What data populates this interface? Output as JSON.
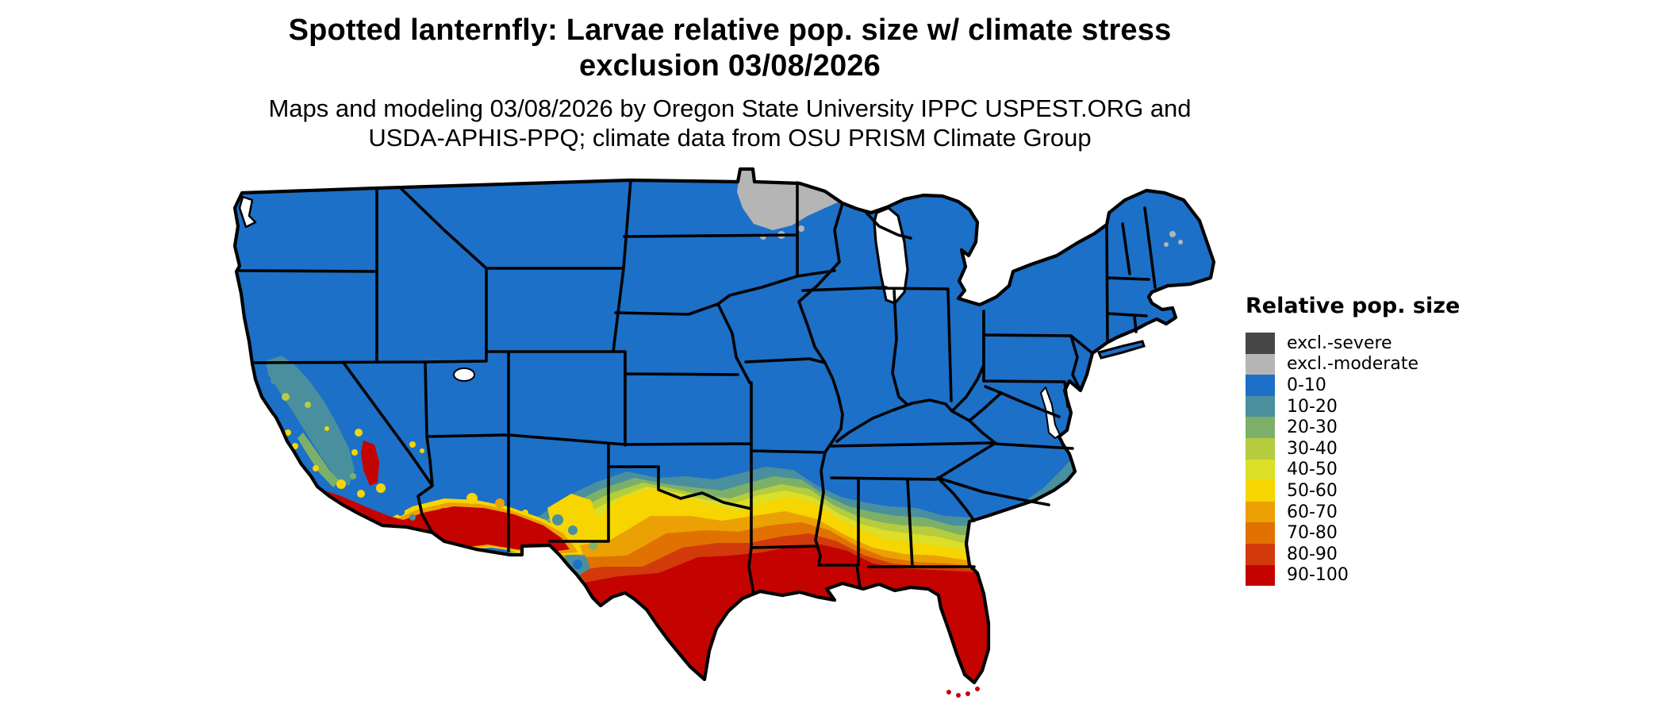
{
  "title": {
    "line1": "Spotted lanternfly: Larvae relative pop. size w/ climate stress",
    "line2": "exclusion 03/08/2026"
  },
  "subtitle": {
    "line1": "Maps and modeling 03/08/2026 by Oregon State University IPPC USPEST.ORG and",
    "line2": "USDA-APHIS-PPQ; climate data from OSU PRISM Climate Group"
  },
  "legend": {
    "title": "Relative pop. size",
    "entries": [
      {
        "label": "excl.-severe",
        "color": "#474747"
      },
      {
        "label": "excl.-moderate",
        "color": "#b5b5b5"
      },
      {
        "label": "0-10",
        "color": "#1c70c8"
      },
      {
        "label": "10-20",
        "color": "#4a8f9e"
      },
      {
        "label": "20-30",
        "color": "#7cb068"
      },
      {
        "label": "30-40",
        "color": "#b5cc3f"
      },
      {
        "label": "40-50",
        "color": "#dcdf26"
      },
      {
        "label": "50-60",
        "color": "#f7d500"
      },
      {
        "label": "60-70",
        "color": "#eba004"
      },
      {
        "label": "70-80",
        "color": "#e17100"
      },
      {
        "label": "80-90",
        "color": "#d23a0c"
      },
      {
        "label": "90-100",
        "color": "#c40300"
      }
    ]
  },
  "map": {
    "name": "Contiguous United States",
    "border_color": "#000000",
    "water_color": "#ffffff",
    "regions": [
      {
        "area": "Northern and central US, Rockies, Midwest, Northeast",
        "class": "0-10"
      },
      {
        "area": "Northern Minnesota",
        "class": "excl.-moderate"
      },
      {
        "area": "Northern Maine patches",
        "class": "excl.-moderate"
      },
      {
        "area": "Band across OK, AR, MS, AL, GA and coastal Carolinas",
        "class": "10-20 to 50-60 gradient"
      },
      {
        "area": "Central Texas and inland Deep South",
        "class": "50-60 to 80-90 gradient"
      },
      {
        "area": "South Texas, Gulf Coast, Louisiana, Florida",
        "class": "90-100"
      },
      {
        "area": "Southern Arizona and southeastern California deserts",
        "class": "90-100"
      },
      {
        "area": "California Central Valley and coast ranges",
        "class": "10-20 to 30-40"
      }
    ]
  }
}
